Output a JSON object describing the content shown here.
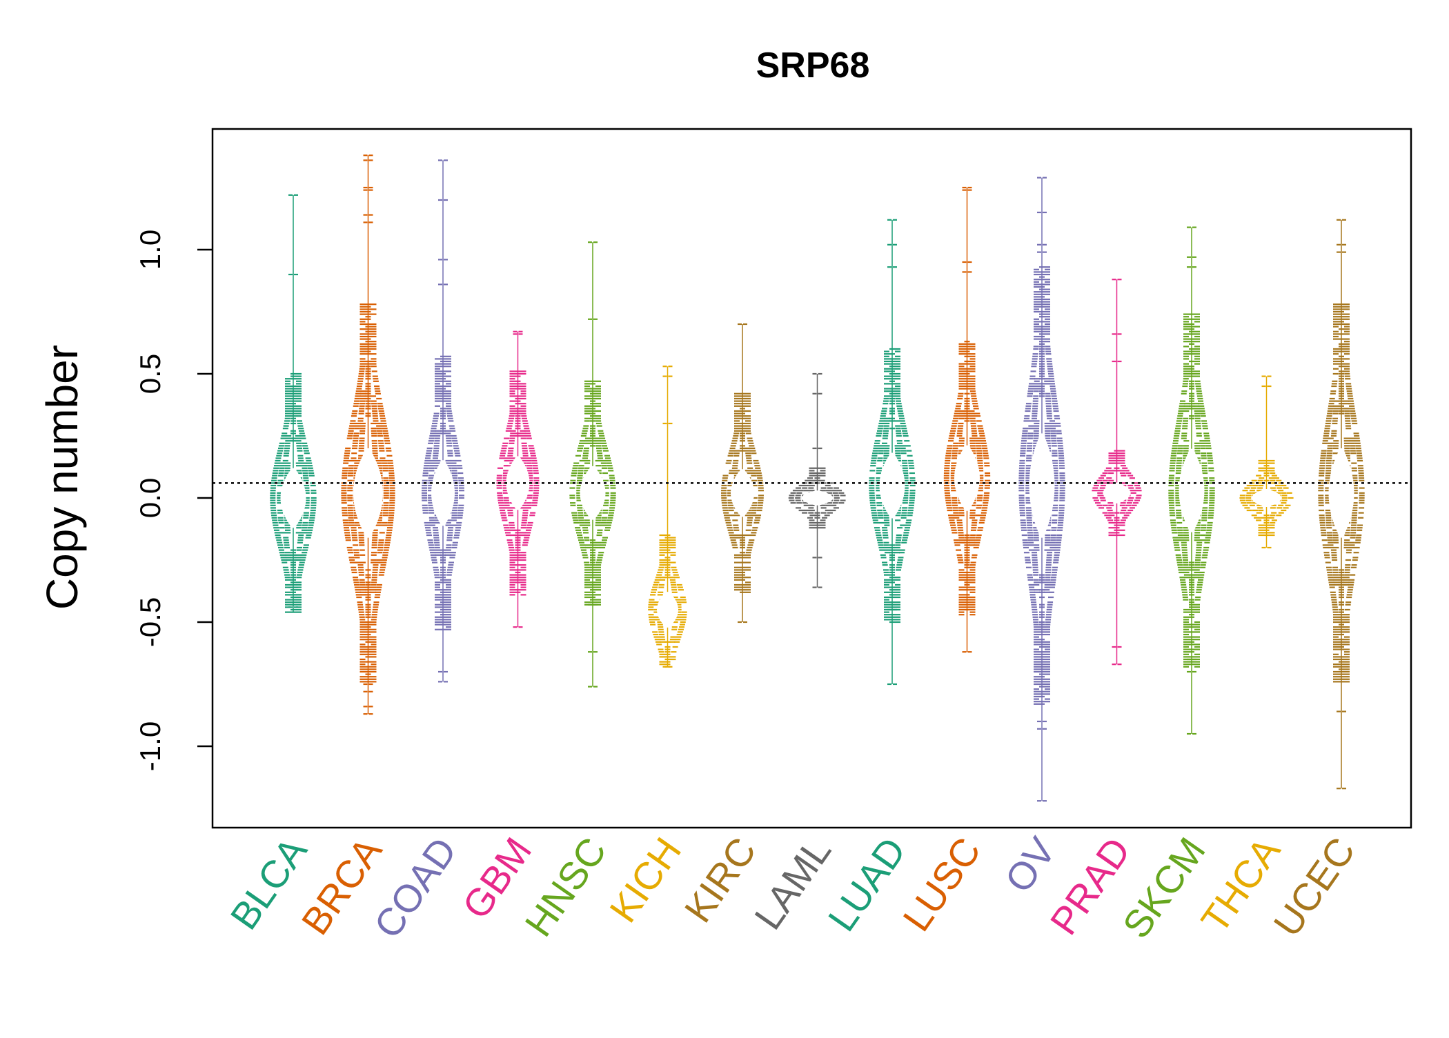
{
  "chart_data": {
    "type": "scatter",
    "title": "SRP68",
    "xlabel": "",
    "ylabel": "Copy number",
    "ylim": [
      -1.3,
      1.5
    ],
    "y_ticks": [
      -1.0,
      -0.5,
      0.0,
      0.5,
      1.0
    ],
    "y_tick_labels": [
      "-1.0",
      "-0.5",
      "0.0",
      "0.5",
      "1.0"
    ],
    "reference_line": 0.06,
    "grid": false,
    "legend": "none",
    "categories": [
      "BLCA",
      "BRCA",
      "COAD",
      "GBM",
      "HNSC",
      "KICH",
      "KIRC",
      "LAML",
      "LUAD",
      "LUSC",
      "OV",
      "PRAD",
      "SKCM",
      "THCA",
      "UCEC"
    ],
    "colors": [
      "#1b9e77",
      "#d95f02",
      "#7570b3",
      "#e7298a",
      "#66a61e",
      "#e6ab02",
      "#a6761d",
      "#666666",
      "#1b9e77",
      "#d95f02",
      "#7570b3",
      "#e7298a",
      "#66a61e",
      "#e6ab02",
      "#a6761d"
    ],
    "series": [
      {
        "category": "BLCA",
        "center": 0.0,
        "spread": 0.2,
        "max_width": 0.55,
        "min": -0.46,
        "max": 1.22,
        "outliers": [
          1.22,
          0.9,
          -0.36,
          -0.44
        ]
      },
      {
        "category": "BRCA",
        "center": 0.02,
        "spread": 0.3,
        "max_width": 0.65,
        "min": -0.87,
        "max": 1.38,
        "outliers": [
          1.38,
          1.36,
          1.25,
          1.24,
          1.14,
          1.11,
          -0.75,
          -0.78,
          -0.84,
          -0.87
        ]
      },
      {
        "category": "COAD",
        "center": 0.02,
        "spread": 0.22,
        "max_width": 0.5,
        "min": -0.74,
        "max": 1.36,
        "outliers": [
          1.36,
          1.2,
          0.96,
          0.86,
          -0.7,
          -0.74
        ]
      },
      {
        "category": "GBM",
        "center": 0.06,
        "spread": 0.18,
        "max_width": 0.5,
        "min": -0.52,
        "max": 0.67,
        "outliers": [
          0.67,
          0.66,
          -0.52
        ]
      },
      {
        "category": "HNSC",
        "center": 0.02,
        "spread": 0.18,
        "max_width": 0.55,
        "min": -0.76,
        "max": 1.03,
        "outliers": [
          1.03,
          0.72,
          -0.43,
          -0.62,
          -0.76
        ]
      },
      {
        "category": "KICH",
        "center": -0.45,
        "spread": 0.12,
        "max_width": 0.45,
        "min": -0.68,
        "max": 0.53,
        "outliers": [
          0.53,
          0.49,
          0.3,
          -0.68
        ]
      },
      {
        "category": "KIRC",
        "center": 0.02,
        "spread": 0.16,
        "max_width": 0.5,
        "min": -0.5,
        "max": 0.7,
        "outliers": [
          0.7,
          -0.5
        ]
      },
      {
        "category": "LAML",
        "center": 0.0,
        "spread": 0.05,
        "max_width": 0.7,
        "min": -0.36,
        "max": 0.5,
        "outliers": [
          0.5,
          0.42,
          0.2,
          -0.24,
          -0.36
        ]
      },
      {
        "category": "LUAD",
        "center": 0.05,
        "spread": 0.22,
        "max_width": 0.55,
        "min": -0.75,
        "max": 1.12,
        "outliers": [
          1.12,
          1.02,
          0.93,
          -0.45,
          -0.75
        ]
      },
      {
        "category": "LUSC",
        "center": 0.08,
        "spread": 0.22,
        "max_width": 0.55,
        "min": -0.62,
        "max": 1.25,
        "outliers": [
          1.25,
          1.24,
          0.95,
          0.91,
          -0.62
        ]
      },
      {
        "category": "OV",
        "center": 0.05,
        "spread": 0.35,
        "max_width": 0.55,
        "min": -1.22,
        "max": 1.29,
        "outliers": [
          1.29,
          1.15,
          1.02,
          0.99,
          -0.9,
          -0.93,
          -1.22
        ]
      },
      {
        "category": "PRAD",
        "center": 0.02,
        "spread": 0.07,
        "max_width": 0.6,
        "min": -0.67,
        "max": 0.88,
        "outliers": [
          0.88,
          0.66,
          0.55,
          -0.6,
          -0.67
        ]
      },
      {
        "category": "SKCM",
        "center": 0.03,
        "spread": 0.28,
        "max_width": 0.55,
        "min": -0.95,
        "max": 1.09,
        "outliers": [
          1.09,
          0.97,
          0.93,
          -0.65,
          -0.7,
          -0.95
        ]
      },
      {
        "category": "THCA",
        "center": 0.0,
        "spread": 0.06,
        "max_width": 0.65,
        "min": -0.2,
        "max": 0.49,
        "outliers": [
          0.49,
          0.45,
          -0.2
        ]
      },
      {
        "category": "UCEC",
        "center": 0.02,
        "spread": 0.3,
        "max_width": 0.55,
        "min": -1.17,
        "max": 1.12,
        "outliers": [
          1.12,
          1.02,
          0.99,
          -0.86,
          -1.17
        ]
      }
    ]
  }
}
